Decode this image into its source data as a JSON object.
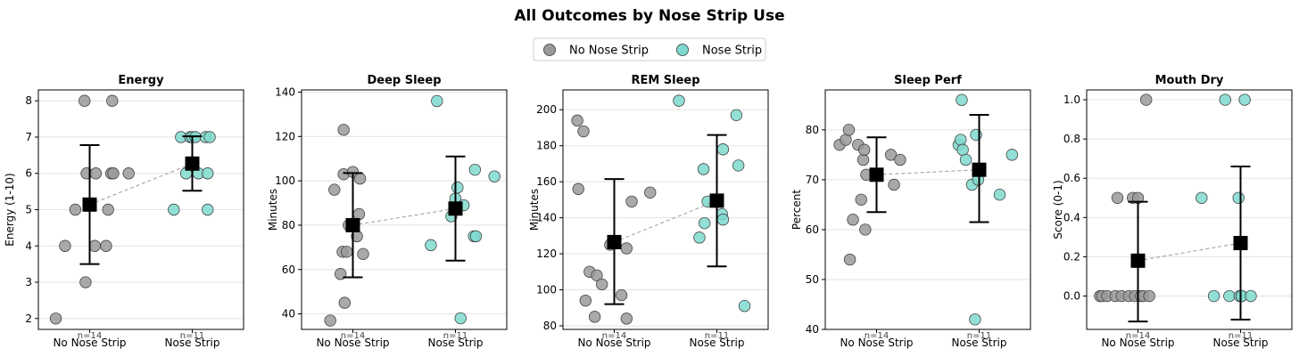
{
  "title": "All Outcomes by Nose Strip Use",
  "legend": {
    "placement": "top-center",
    "items": [
      {
        "label": "No Nose Strip",
        "color": "#9a9a9a"
      },
      {
        "label": "Nose Strip",
        "color": "#7fd9cf"
      }
    ]
  },
  "colors": {
    "no_strip": "#9a9a9a",
    "strip": "#7fd9cf",
    "mean_marker": "#000000",
    "connector": "#999999",
    "grid": "#e3e3e3"
  },
  "chart_data": [
    {
      "type": "scatter",
      "title": "Energy",
      "ylabel": "Energy (1-10)",
      "ylim": [
        1.7,
        8.3
      ],
      "yticks": [
        2,
        3,
        4,
        5,
        6,
        7,
        8
      ],
      "yticklabels": [
        "2",
        "3",
        "4",
        "5",
        "6",
        "7",
        "8"
      ],
      "categories": [
        "No Nose Strip",
        "Nose Strip"
      ],
      "n_labels": [
        "n=14",
        "n=11"
      ],
      "grid": true,
      "series": [
        {
          "name": "No Nose Strip",
          "jitter": [
            -0.33,
            -0.24,
            -0.14,
            -0.05,
            -0.04,
            -0.03,
            0.05,
            0.06,
            0.16,
            0.18,
            0.21,
            0.22,
            0.23,
            0.38
          ],
          "values": [
            2,
            4,
            5,
            8,
            3,
            6,
            4,
            6,
            4,
            5,
            6,
            8,
            6,
            6
          ]
        },
        {
          "name": "Nose Strip",
          "jitter": [
            -0.18,
            -0.11,
            -0.06,
            -0.02,
            0.0,
            0.03,
            0.06,
            0.13,
            0.15,
            0.15,
            0.17
          ],
          "values": [
            5,
            7,
            6,
            7,
            7,
            7,
            6,
            7,
            6,
            5,
            7
          ]
        }
      ],
      "mean": [
        5.14,
        6.27
      ],
      "ci": [
        [
          3.5,
          6.78
        ],
        [
          5.52,
          7.02
        ]
      ]
    },
    {
      "type": "scatter",
      "title": "Deep Sleep",
      "ylabel": "Minutes",
      "ylim": [
        33,
        141
      ],
      "yticks": [
        40,
        60,
        80,
        100,
        120,
        140
      ],
      "yticklabels": [
        "40",
        "60",
        "80",
        "100",
        "120",
        "140"
      ],
      "categories": [
        "No Nose Strip",
        "Nose Strip"
      ],
      "n_labels": [
        "n=14",
        "n=11"
      ],
      "grid": true,
      "series": [
        {
          "name": "No Nose Strip",
          "jitter": [
            -0.22,
            -0.18,
            -0.12,
            -0.1,
            -0.09,
            -0.09,
            -0.08,
            -0.06,
            -0.04,
            0.0,
            0.04,
            0.06,
            0.07,
            0.1
          ],
          "values": [
            37,
            96,
            58,
            68,
            123,
            103,
            45,
            68,
            80,
            104,
            75,
            85,
            101,
            67
          ]
        },
        {
          "name": "Nose Strip",
          "jitter": [
            -0.24,
            -0.18,
            -0.04,
            0.0,
            0.02,
            0.05,
            0.08,
            0.18,
            0.19,
            0.2,
            0.38
          ],
          "values": [
            71,
            136,
            84,
            92,
            97,
            38,
            89,
            75,
            105,
            75,
            102
          ]
        }
      ],
      "mean": [
        80,
        87.5
      ],
      "ci": [
        [
          56.5,
          103.5
        ],
        [
          64,
          111
        ]
      ]
    },
    {
      "type": "scatter",
      "title": "REM Sleep",
      "ylabel": "Minutes",
      "ylim": [
        78,
        211
      ],
      "yticks": [
        80,
        100,
        120,
        140,
        160,
        180,
        200
      ],
      "yticklabels": [
        "80",
        "100",
        "120",
        "140",
        "160",
        "180",
        "200"
      ],
      "categories": [
        "No Nose Strip",
        "Nose Strip"
      ],
      "n_labels": [
        "n=14",
        "n=11"
      ],
      "grid": true,
      "series": [
        {
          "name": "No Nose Strip",
          "jitter": [
            -0.36,
            -0.35,
            -0.3,
            -0.28,
            -0.24,
            -0.19,
            -0.17,
            -0.12,
            -0.04,
            0.07,
            0.12,
            0.12,
            0.17,
            0.35
          ],
          "values": [
            194,
            156,
            188,
            94,
            110,
            85,
            108,
            103,
            125,
            97,
            123,
            84,
            149,
            154
          ]
        },
        {
          "name": "Nose Strip",
          "jitter": [
            -0.37,
            -0.17,
            -0.13,
            -0.12,
            -0.09,
            0.05,
            0.06,
            0.06,
            0.19,
            0.21,
            0.27
          ],
          "values": [
            205,
            129,
            167,
            137,
            149,
            142,
            139,
            178,
            197,
            169,
            91
          ]
        }
      ],
      "mean": [
        126.5,
        149.5
      ],
      "ci": [
        [
          92,
          161.5
        ],
        [
          113,
          186
        ]
      ]
    },
    {
      "type": "scatter",
      "title": "Sleep Perf",
      "ylabel": "Percent",
      "ylim": [
        40,
        88
      ],
      "yticks": [
        40,
        50,
        60,
        70,
        80
      ],
      "yticklabels": [
        "40",
        "50",
        "60",
        "70",
        "80"
      ],
      "categories": [
        "No Nose Strip",
        "Nose Strip"
      ],
      "n_labels": [
        "n=14",
        "n=11"
      ],
      "grid": true,
      "series": [
        {
          "name": "No Nose Strip",
          "jitter": [
            -0.36,
            -0.3,
            -0.27,
            -0.26,
            -0.23,
            -0.18,
            -0.15,
            -0.13,
            -0.12,
            -0.11,
            -0.1,
            0.14,
            0.17,
            0.23
          ],
          "values": [
            77,
            78,
            80,
            54,
            62,
            77,
            66,
            74,
            76,
            60,
            71,
            75,
            69,
            74
          ]
        },
        {
          "name": "Nose Strip",
          "jitter": [
            -0.2,
            -0.18,
            -0.17,
            -0.16,
            -0.13,
            -0.07,
            -0.04,
            -0.03,
            -0.01,
            0.2,
            0.32
          ],
          "values": [
            77,
            78,
            86,
            76,
            74,
            69,
            42,
            79,
            70,
            67,
            75
          ]
        }
      ],
      "mean": [
        71,
        72
      ],
      "ci": [
        [
          63.5,
          78.5
        ],
        [
          61.5,
          83
        ]
      ]
    },
    {
      "type": "scatter",
      "title": "Mouth Dry",
      "ylabel": "Score (0-1)",
      "ylim": [
        -0.17,
        1.05
      ],
      "yticks": [
        0.0,
        0.2,
        0.4,
        0.6,
        0.8,
        1.0
      ],
      "yticklabels": [
        "0.0",
        "0.2",
        "0.4",
        "0.6",
        "0.8",
        "1.0"
      ],
      "categories": [
        "No Nose Strip",
        "Nose Strip"
      ],
      "n_labels": [
        "n=14",
        "n=11"
      ],
      "grid": true,
      "series": [
        {
          "name": "No Nose Strip",
          "jitter": [
            -0.37,
            -0.35,
            -0.3,
            -0.22,
            -0.2,
            -0.16,
            -0.09,
            -0.05,
            -0.03,
            0.0,
            0.03,
            0.05,
            0.08,
            0.11
          ],
          "values": [
            0,
            0,
            0,
            0,
            0.5,
            0,
            0,
            0.5,
            0,
            0.5,
            0,
            0,
            1.0,
            0
          ]
        },
        {
          "name": "Nose Strip",
          "jitter": [
            -0.38,
            -0.26,
            -0.15,
            -0.11,
            -0.02,
            -0.01,
            0.01,
            0.01,
            0.01,
            0.04,
            0.1
          ],
          "values": [
            0.5,
            0,
            1.0,
            0,
            0.5,
            0,
            0,
            0,
            0,
            1.0,
            0
          ]
        }
      ],
      "mean": [
        0.18,
        0.27
      ],
      "ci": [
        [
          -0.13,
          0.48
        ],
        [
          -0.12,
          0.66
        ]
      ]
    }
  ]
}
